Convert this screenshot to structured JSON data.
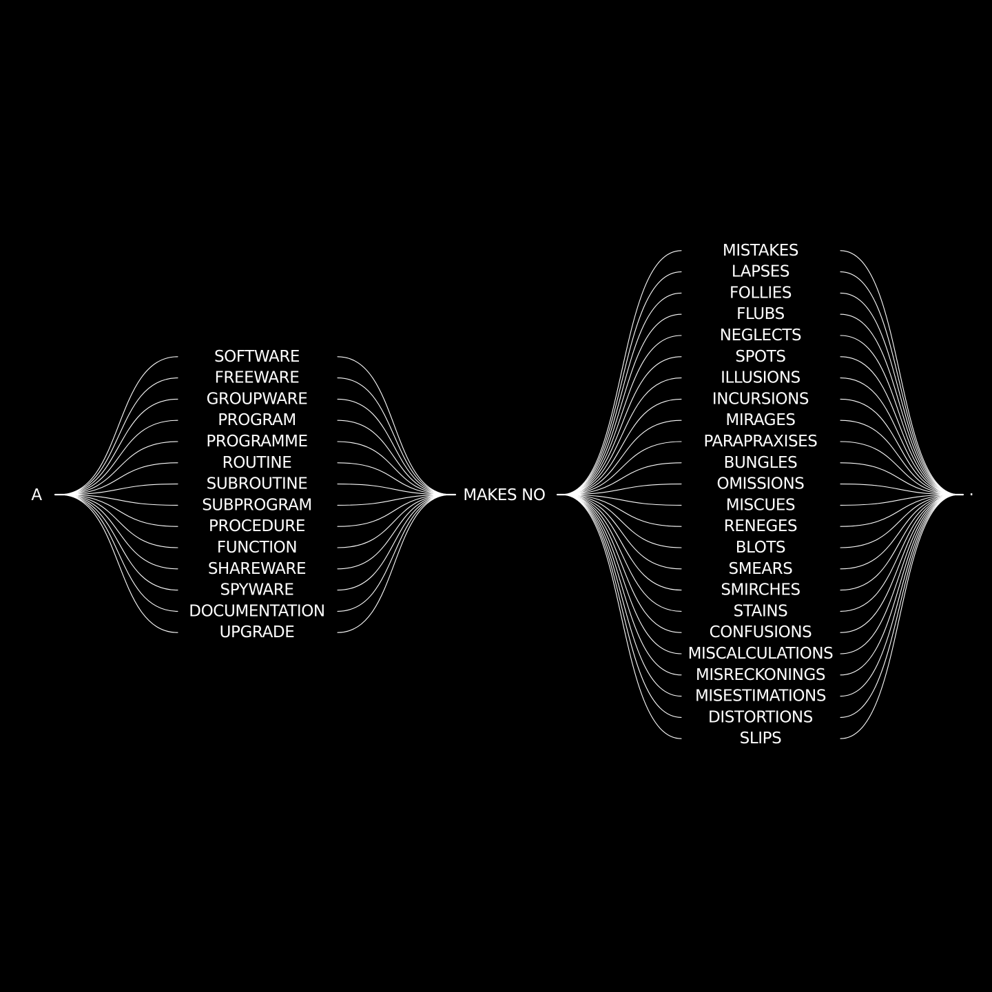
{
  "colors": {
    "background": "#000000",
    "foreground": "#ffffff"
  },
  "sentence": {
    "start": "A",
    "middle": "MAKES NO",
    "end": "."
  },
  "groups": {
    "left": {
      "words": [
        "SOFTWARE",
        "FREEWARE",
        "GROUPWARE",
        "PROGRAM",
        "PROGRAMME",
        "ROUTINE",
        "SUBROUTINE",
        "SUBPROGRAM",
        "PROCEDURE",
        "FUNCTION",
        "SHAREWARE",
        "SPYWARE",
        "DOCUMENTATION",
        "UPGRADE"
      ]
    },
    "right": {
      "words": [
        "MISTAKES",
        "LAPSES",
        "FOLLIES",
        "FLUBS",
        "NEGLECTS",
        "SPOTS",
        "ILLUSIONS",
        "INCURSIONS",
        "MIRAGES",
        "PARAPRAXISES",
        "BUNGLES",
        "OMISSIONS",
        "MISCUES",
        "RENEGES",
        "BLOTS",
        "SMEARS",
        "SMIRCHES",
        "STAINS",
        "CONFUSIONS",
        "MISCALCULATIONS",
        "MISRECKONINGS",
        "MISESTIMATIONS",
        "DISTORTIONS",
        "SLIPS"
      ]
    }
  }
}
